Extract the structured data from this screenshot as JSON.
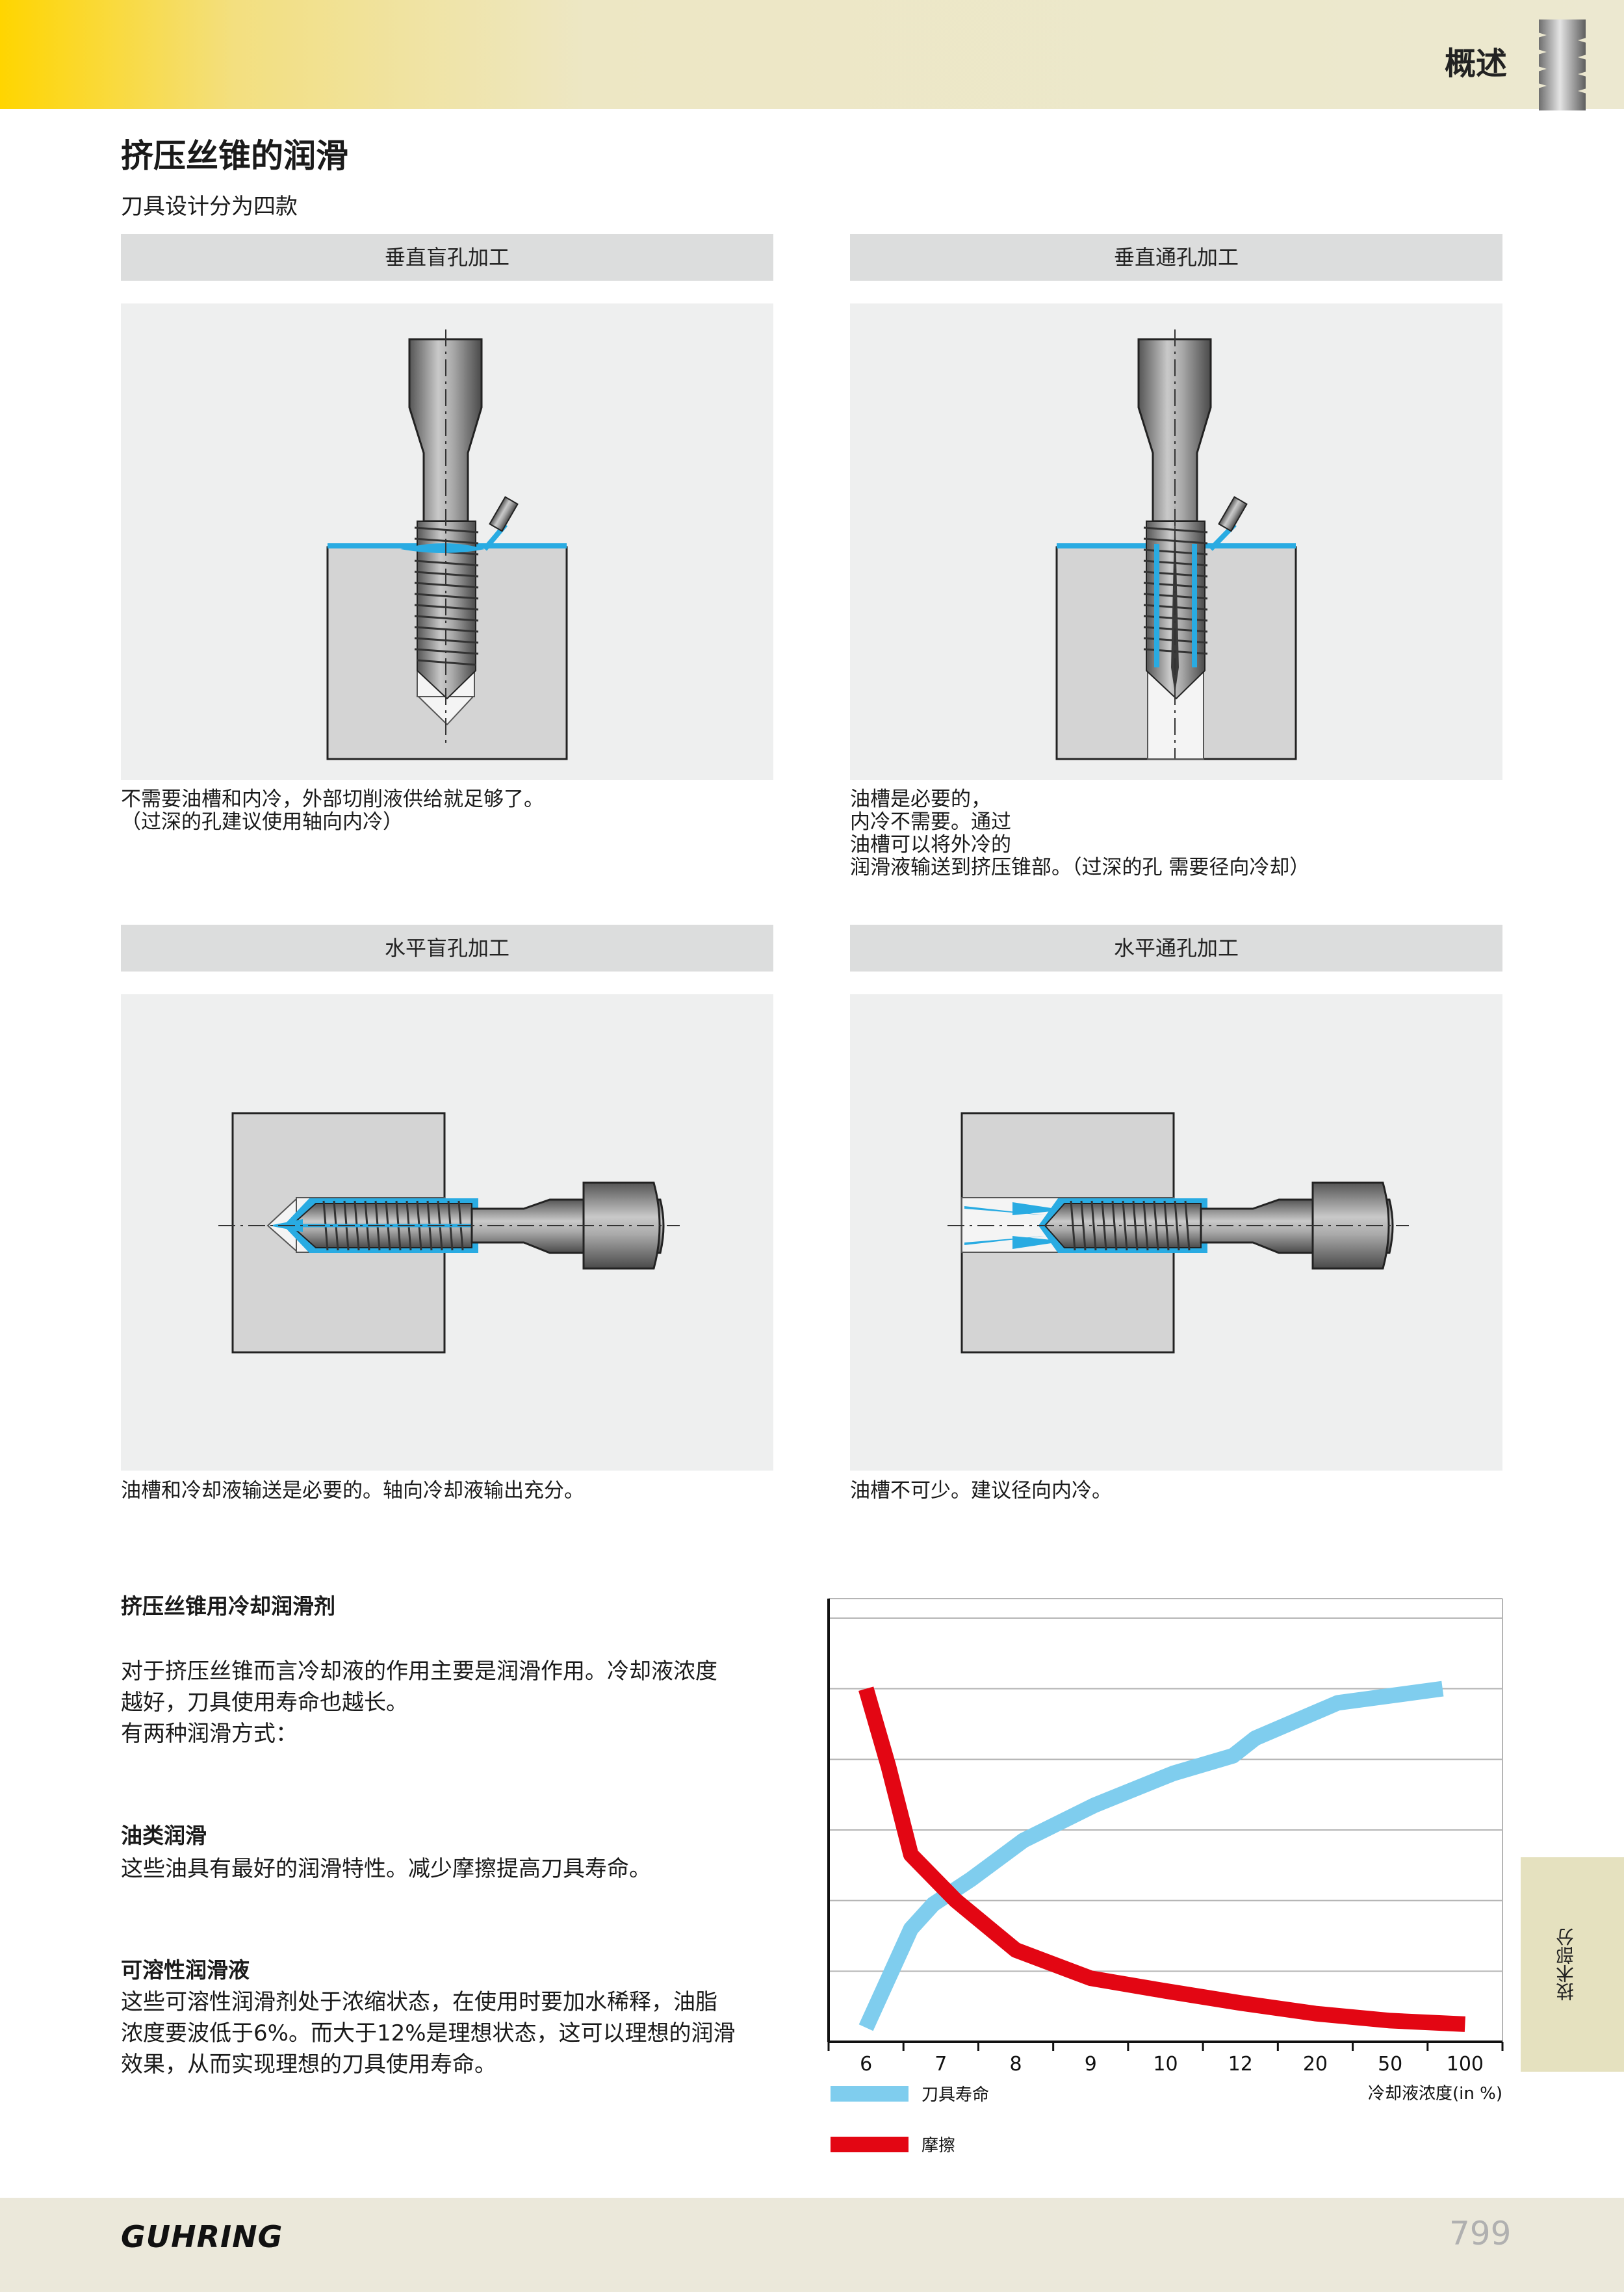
{
  "header": {
    "section": "概述",
    "icon": "tap-thread-icon"
  },
  "title": "挤压丝锥的润滑",
  "subtitle": "刀具设计分为四款",
  "panels": [
    {
      "heading": "垂直盲孔加工",
      "caption": "不需要油槽和内冷，外部切削液供给就足够了。\n（过深的孔建议使用轴向内冷）"
    },
    {
      "heading": "垂直通孔加工",
      "caption": "油槽是必要的，\n内冷不需要。通过\n油槽可以将外冷的\n润滑液输送到挤压锥部。（过深的孔 需要径向冷却）"
    },
    {
      "heading": "水平盲孔加工",
      "caption": "油槽和冷却液输送是必要的。轴向冷却液输出充分。"
    },
    {
      "heading": "水平通孔加工",
      "caption": "油槽不可少。建议径向内冷。"
    }
  ],
  "coolant": {
    "heading": "挤压丝锥用冷却润滑剂",
    "intro": "对于挤压丝锥而言冷却液的作用主要是润滑作用。冷却液浓度\n越好，刀具使用寿命也越长。\n有两种润滑方式：",
    "oil_heading": "油类润滑",
    "oil_text": "这些油具有最好的润滑特性。减少摩擦提高刀具寿命。",
    "soluble_heading": "可溶性润滑液",
    "soluble_text": "这些可溶性润滑剂处于浓缩状态，在使用时要加水稀释，油脂\n浓度要波低于6%。而大于12%是理想状态，这可以理想的润滑\n效果，从而实现理想的刀具使用寿命。"
  },
  "chart_data": {
    "type": "line",
    "categories": [
      "6",
      "7",
      "8",
      "9",
      "10",
      "12",
      "20",
      "50",
      "100"
    ],
    "xlabel": "冷却液浓度(in %)",
    "ylabel": "",
    "ylim": [
      0,
      6
    ],
    "grid": true,
    "legend_position": "bottom-left",
    "series": [
      {
        "name": "刀具寿命",
        "color": "#7fcdee",
        "points": [
          [
            0.0,
            0.2
          ],
          [
            0.3,
            0.9
          ],
          [
            0.6,
            1.6
          ],
          [
            0.9,
            1.95
          ],
          [
            1.4,
            2.3
          ],
          [
            2.1,
            2.85
          ],
          [
            3.05,
            3.35
          ],
          [
            4.1,
            3.8
          ],
          [
            4.9,
            4.05
          ],
          [
            5.2,
            4.3
          ],
          [
            6.3,
            4.8
          ],
          [
            7.7,
            5.0
          ]
        ]
      },
      {
        "name": "摩擦",
        "color": "#e30613",
        "points": [
          [
            0.0,
            5.0
          ],
          [
            0.3,
            3.9
          ],
          [
            0.6,
            2.65
          ],
          [
            1.2,
            2.0
          ],
          [
            2.0,
            1.3
          ],
          [
            3.0,
            0.9
          ],
          [
            4.0,
            0.72
          ],
          [
            5.0,
            0.55
          ],
          [
            6.0,
            0.4
          ],
          [
            7.0,
            0.3
          ],
          [
            8.0,
            0.25
          ]
        ]
      }
    ]
  },
  "side_tab": "技术部分",
  "footer": {
    "logo": "GUHRING",
    "page_number": "799"
  }
}
